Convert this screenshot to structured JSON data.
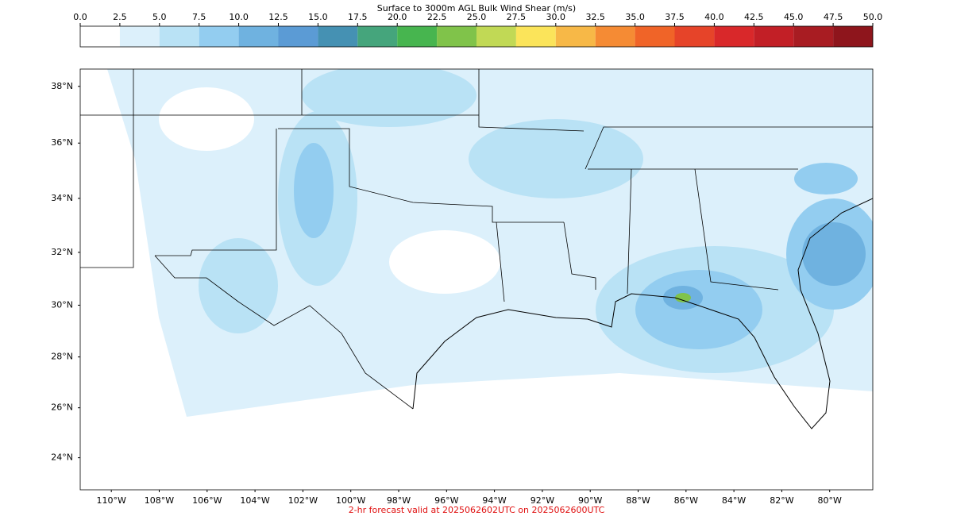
{
  "colorbar": {
    "title": "Surface to 3000m AGL Bulk Wind Shear (m/s)",
    "range": [
      0,
      50
    ],
    "ticks": [
      {
        "value": 0,
        "label": "0.0"
      },
      2.5,
      {
        "value": 5,
        "label": "5.0"
      },
      7.5,
      {
        "value": 10,
        "label": "10.0"
      },
      12.5,
      {
        "value": 15,
        "label": "15.0"
      },
      17.5,
      {
        "value": 20,
        "label": "20.0"
      },
      22.5,
      {
        "value": 25,
        "label": "25.0"
      },
      27.5,
      {
        "value": 30,
        "label": "30.0"
      },
      32.5,
      {
        "value": 35,
        "label": "35.0"
      },
      37.5,
      {
        "value": 40,
        "label": "40.0"
      },
      42.5,
      {
        "value": 45,
        "label": "45.0"
      },
      47.5,
      {
        "value": 50,
        "label": "50.0"
      }
    ],
    "colors": [
      "#ffffff",
      "#dcf0fb",
      "#b9e2f5",
      "#93cdf0",
      "#6fb2e0",
      "#5b9bd5",
      "#4591b3",
      "#45a57c",
      "#47b54f",
      "#80c34a",
      "#c1d955",
      "#fbe45a",
      "#f7b847",
      "#f58b34",
      "#f06428",
      "#e64429",
      "#d9282a",
      "#c21f26",
      "#a81c22",
      "#8e151c"
    ]
  },
  "map": {
    "lon_range": [
      -111.3,
      -78.2
    ],
    "lat_range": [
      22.7,
      38.6
    ],
    "lon_ticks": [
      {
        "value": -110,
        "label": "110°W"
      },
      {
        "value": -108,
        "label": "108°W"
      },
      {
        "value": -106,
        "label": "106°W"
      },
      {
        "value": -104,
        "label": "104°W"
      },
      {
        "value": -102,
        "label": "102°W"
      },
      {
        "value": -100,
        "label": "100°W"
      },
      {
        "value": -98,
        "label": "98°W"
      },
      {
        "value": -96,
        "label": "96°W"
      },
      {
        "value": -94,
        "label": "94°W"
      },
      {
        "value": -92,
        "label": "92°W"
      },
      {
        "value": -90,
        "label": "90°W"
      },
      {
        "value": -88,
        "label": "88°W"
      },
      {
        "value": -86,
        "label": "86°W"
      },
      {
        "value": -84,
        "label": "84°W"
      },
      {
        "value": -82,
        "label": "82°W"
      },
      {
        "value": -80,
        "label": "80°W"
      }
    ],
    "lat_ticks": [
      {
        "value": 24,
        "label": "24°N"
      },
      {
        "value": 26,
        "label": "26°N"
      },
      {
        "value": 28,
        "label": "28°N"
      },
      {
        "value": 30,
        "label": "30°N"
      },
      {
        "value": 32,
        "label": "32°N"
      },
      {
        "value": 34,
        "label": "34°N"
      },
      {
        "value": 36,
        "label": "36°N"
      },
      {
        "value": 38,
        "label": "38°N"
      }
    ]
  },
  "footer": "2-hr forecast valid at 2025062602UTC on 2025062600UTC"
}
